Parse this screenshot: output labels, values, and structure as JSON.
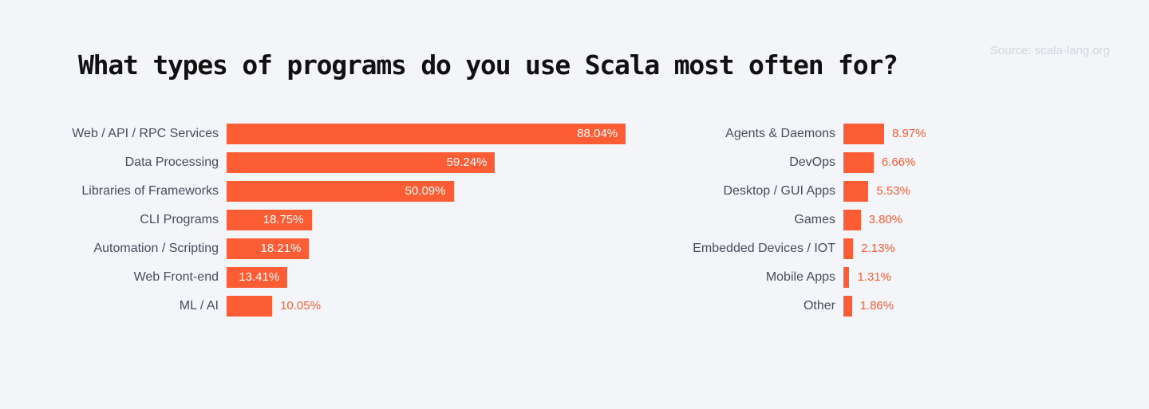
{
  "source": "Source: scala-lang.org",
  "chart_data": {
    "type": "bar",
    "orientation": "horizontal",
    "title": "What types of programs do you use Scala most often for?",
    "unit": "%",
    "groups": [
      {
        "categories": [
          "Web / API / RPC Services",
          "Data Processing",
          "Libraries of Frameworks",
          "CLI Programs",
          "Automation / Scripting",
          "Web Front-end",
          "ML / AI"
        ],
        "values": [
          88.04,
          59.24,
          50.09,
          18.75,
          18.21,
          13.41,
          10.05
        ],
        "labels": [
          "88.04%",
          "59.24%",
          "50.09%",
          "18.75%",
          "18.21%",
          "13.41%",
          "10.05%"
        ]
      },
      {
        "categories": [
          "Agents & Daemons",
          "DevOps",
          "Desktop / GUI Apps",
          "Games",
          "Embedded Devices / IOT",
          "Mobile Apps",
          "Other"
        ],
        "values": [
          8.97,
          6.66,
          5.53,
          3.8,
          2.13,
          1.31,
          1.86
        ],
        "labels": [
          "8.97%",
          "6.66%",
          "5.53%",
          "3.80%",
          "2.13%",
          "1.31%",
          "1.86%"
        ]
      }
    ],
    "xlim": [
      0,
      88.04
    ],
    "bar_color": "#fd5d35",
    "label_color": "#4a4c5a",
    "inside_value_color": "#ffffff",
    "outside_value_color": "#fd5d35"
  }
}
